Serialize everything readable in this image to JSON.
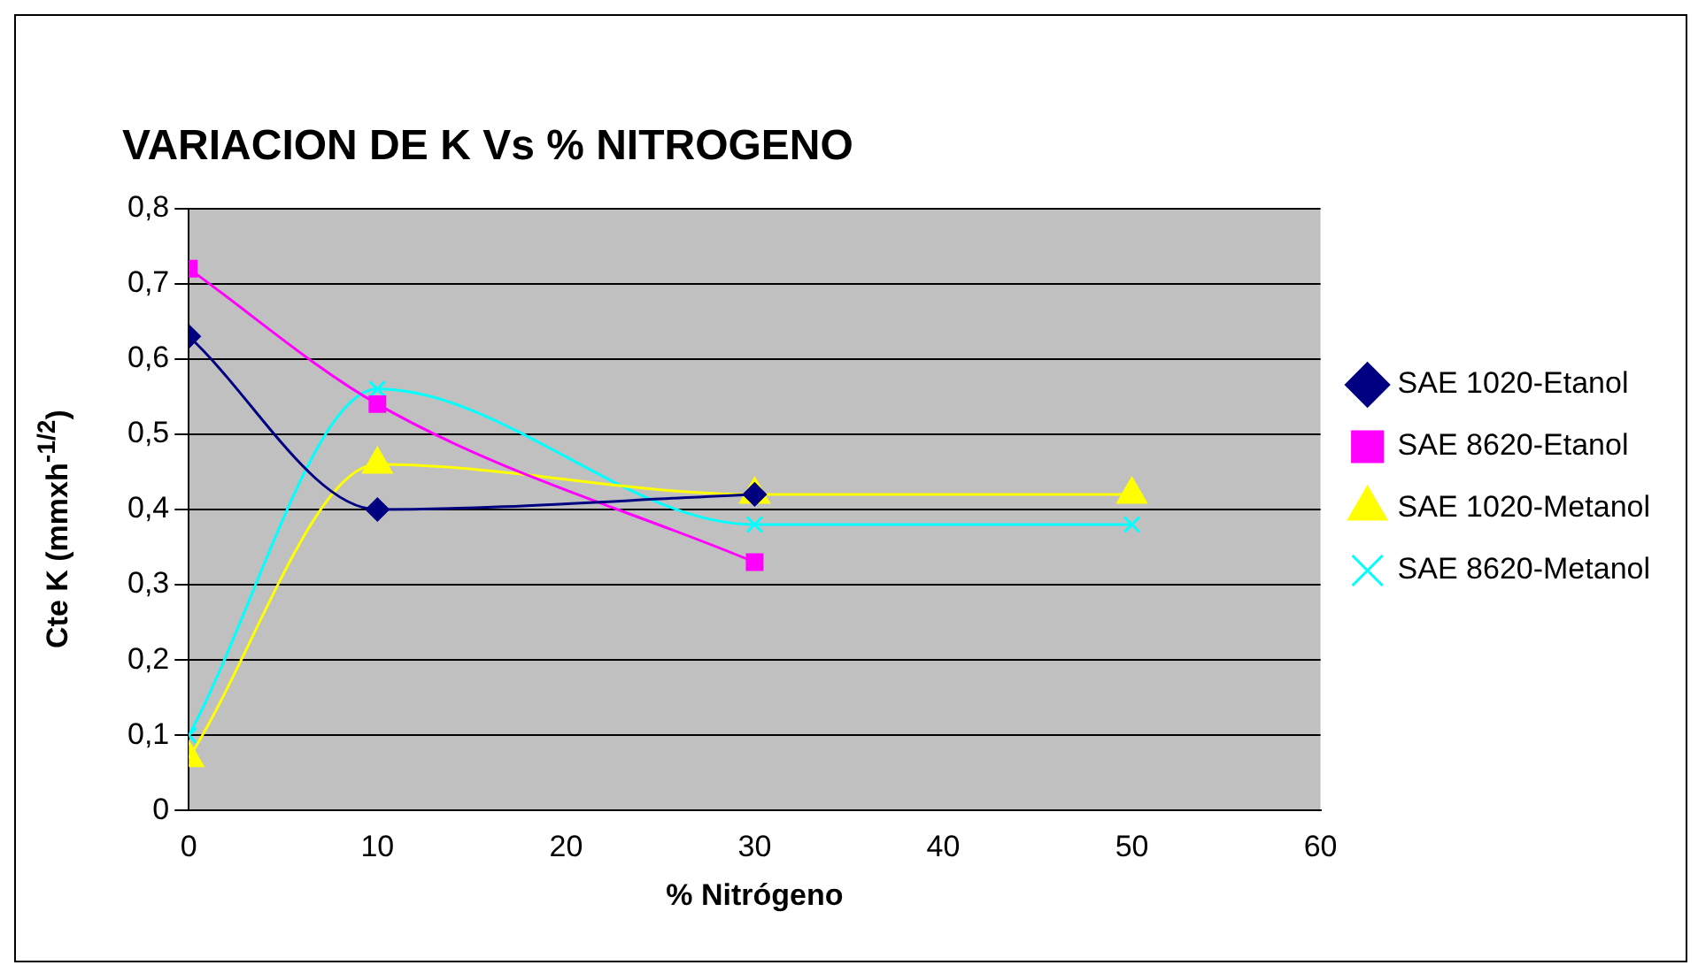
{
  "chart_data": {
    "type": "line",
    "title": "VARIACION DE K Vs % NITROGENO",
    "xlabel": "% Nitrógeno",
    "ylabel": "Cte K (mmxh$^{-1/2}$)",
    "x": [
      0,
      10,
      30,
      50
    ],
    "series": [
      {
        "name": "SAE 1020-Etanol",
        "color": "#000080",
        "marker": "diamond",
        "values": [
          0.63,
          0.4,
          0.42,
          null
        ]
      },
      {
        "name": "SAE 8620-Etanol",
        "color": "#ff00ff",
        "marker": "square",
        "values": [
          0.72,
          0.54,
          0.33,
          null
        ]
      },
      {
        "name": "SAE 1020-Metanol",
        "color": "#ffff00",
        "marker": "triangle",
        "values": [
          0.07,
          0.46,
          0.42,
          0.42
        ]
      },
      {
        "name": "SAE 8620-Metanol",
        "color": "#00ffff",
        "marker": "cross",
        "values": [
          0.1,
          0.56,
          0.38,
          0.38
        ]
      }
    ],
    "xlim": [
      0,
      60
    ],
    "xticks": [
      0,
      10,
      20,
      30,
      40,
      50,
      60
    ],
    "ylim": [
      0,
      0.8
    ],
    "yticks": [
      0,
      {
        "value": 0.1,
        "label": "0,1"
      },
      {
        "value": 0.2,
        "label": "0,2"
      },
      {
        "value": 0.3,
        "label": "0,3"
      },
      {
        "value": 0.4,
        "label": "0,4"
      },
      {
        "value": 0.5,
        "label": "0,5"
      },
      {
        "value": 0.6,
        "label": "0,6"
      },
      {
        "value": 0.7,
        "label": "0,7"
      },
      {
        "value": 0.8,
        "label": "0,8"
      }
    ],
    "grid": "y",
    "legend": "right"
  }
}
